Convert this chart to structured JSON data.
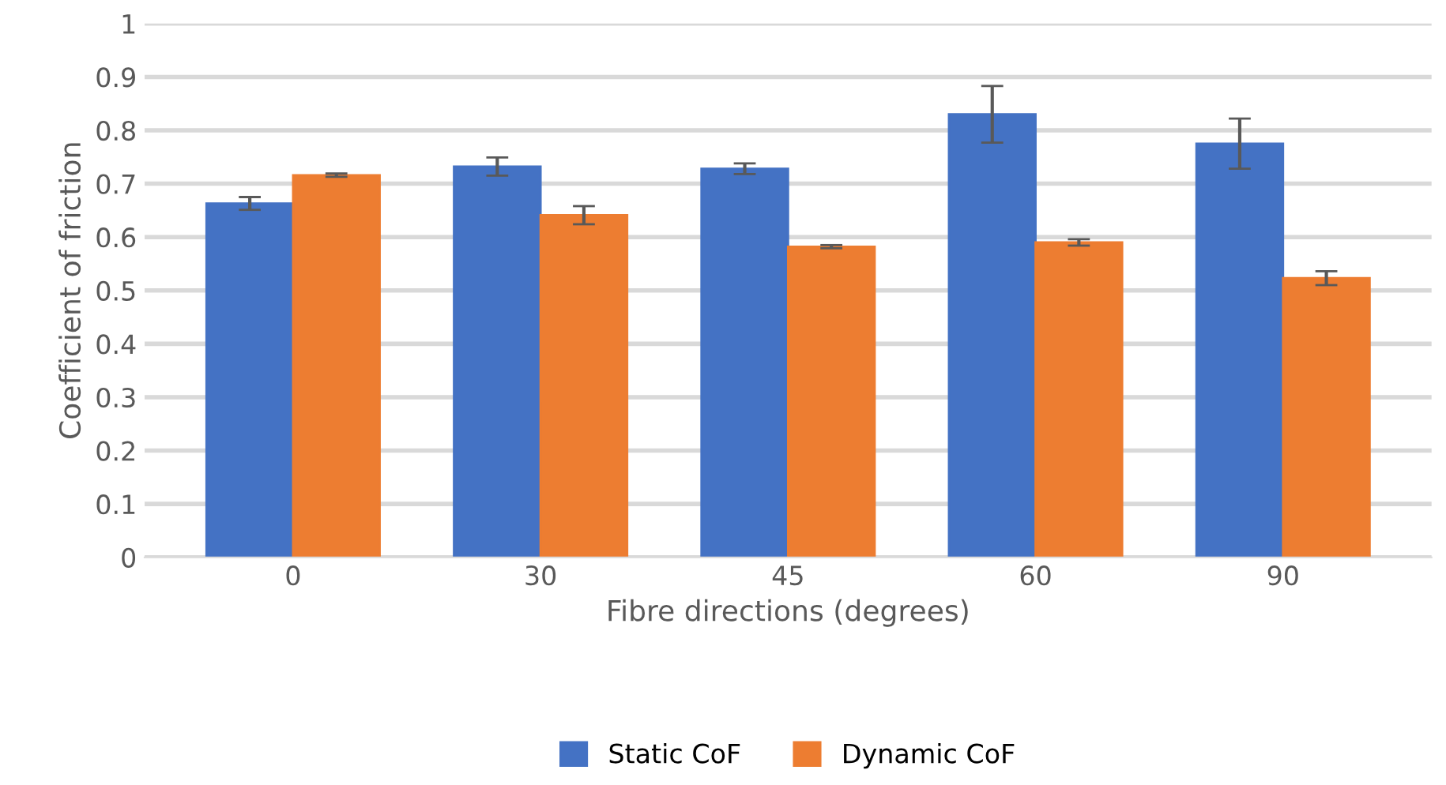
{
  "chart_data": {
    "type": "bar",
    "xlabel": "Fibre directions (degrees)",
    "ylabel": "Coefficient of friction",
    "categories": [
      "0",
      "30",
      "45",
      "60",
      "90"
    ],
    "series": [
      {
        "name": "Static CoF",
        "color": "#4472c4",
        "values": [
          0.663,
          0.732,
          0.728,
          0.83,
          0.775
        ],
        "errors": [
          0.012,
          0.017,
          0.01,
          0.053,
          0.047
        ]
      },
      {
        "name": "Dynamic CoF",
        "color": "#ed7d31",
        "values": [
          0.716,
          0.641,
          0.582,
          0.59,
          0.523
        ],
        "errors": [
          0.003,
          0.017,
          0.003,
          0.006,
          0.013
        ]
      }
    ],
    "ylim": [
      0,
      1
    ],
    "yticks": [
      0,
      0.1,
      0.2,
      0.3,
      0.4,
      0.5,
      0.6,
      0.7,
      0.8,
      0.9,
      1
    ],
    "grid": "y",
    "legend": "bottom"
  }
}
